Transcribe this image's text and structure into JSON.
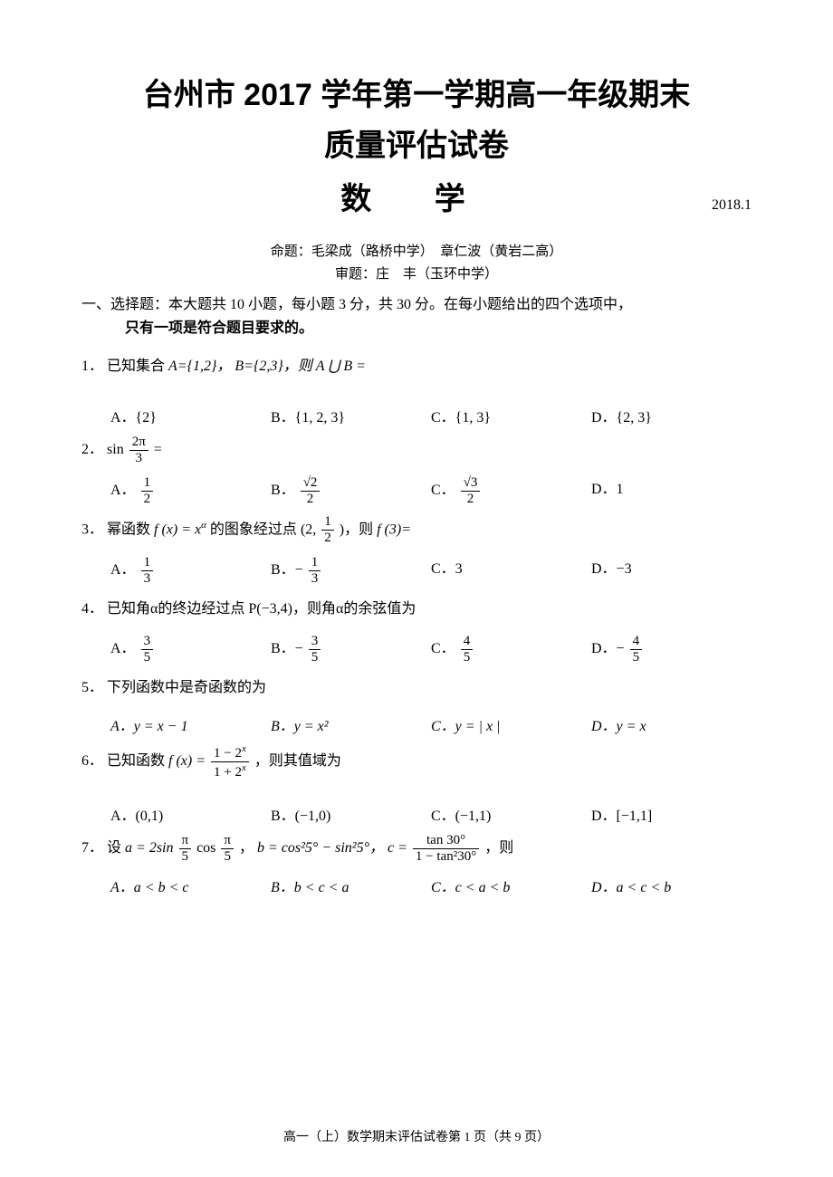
{
  "title_line1": "台州市 2017 学年第一学期高一年级期末",
  "title_line2": "质量评估试卷",
  "subject": "数 学",
  "date": "2018.1",
  "credits1": "命题：毛梁成（路桥中学）　章仁波（黄岩二高）",
  "credits2": "审题：庄　丰（玉环中学）",
  "section1_prefix": "一、选择题：",
  "section1_body": "本大题共 10 小题，每小题 3 分，共 30 分。在每小题给出的四个选项中，",
  "section1_body2": "只有一项是符合题目要求的。",
  "q1": {
    "num": "1．",
    "text_pre": "已知集合 ",
    "A_eq": "A={1,2}，",
    "B_eq": "B={2,3}，则 ",
    "union": "A ⋃ B =",
    "choices": {
      "A": "A．{2}",
      "B": "B．{1, 2, 3}",
      "C": "C．{1, 3}",
      "D": "D．{2, 3}"
    }
  },
  "q2": {
    "num": "2．",
    "sin": "sin",
    "num_frac": "2π",
    "den_frac": "3",
    "eq": " =",
    "choices": {
      "A_label": "A．",
      "A_num": "1",
      "A_den": "2",
      "B_label": "B．",
      "B_num": "√2",
      "B_den": "2",
      "C_label": "C．",
      "C_num": "√3",
      "C_den": "2",
      "D": "D．1"
    }
  },
  "q3": {
    "num": "3．",
    "text": "幂函数 ",
    "fx": "f (x) = x",
    "alpha": "α",
    "text2": " 的图象经过点 ",
    "point_open": "(2,",
    "pt_num": "1",
    "pt_den": "2",
    "point_close": ")，则 ",
    "f3": "f (3)=",
    "choices": {
      "A_label": "A．",
      "A_num": "1",
      "A_den": "3",
      "B_label": "B．−",
      "B_num": "1",
      "B_den": "3",
      "C": "C．3",
      "D": "D．−3"
    }
  },
  "q4": {
    "num": "4．",
    "text": "已知角α的终边经过点 P(−3,4)，则角α的余弦值为",
    "choices": {
      "A_label": "A．",
      "A_num": "3",
      "A_den": "5",
      "B_label": "B．−",
      "B_num": "3",
      "B_den": "5",
      "C_label": "C．",
      "C_num": "4",
      "C_den": "5",
      "D_label": "D．−",
      "D_num": "4",
      "D_den": "5"
    }
  },
  "q5": {
    "num": "5．",
    "text": "下列函数中是奇函数的为",
    "choices": {
      "A": "A．y = x − 1",
      "B": "B．y = x²",
      "C": "C．y = | x |",
      "D": "D．y = x"
    }
  },
  "q6": {
    "num": "6．",
    "text": "已知函数 ",
    "fx": "f (x) = ",
    "num_expr": "1 − 2",
    "den_expr": "1 + 2",
    "exp": "x",
    "text2": "，则其值域为",
    "choices": {
      "A": "A．(0,1)",
      "B": "B．(−1,0)",
      "C": "C．(−1,1)",
      "D": "D．[−1,1]"
    }
  },
  "q7": {
    "num": "7．",
    "text_pre": "设 ",
    "a_eq": "a = 2sin",
    "a_num": "π",
    "a_den": "5",
    "cos": "cos",
    "comma": "，",
    "b_eq": "b = cos²5° − sin²5°，",
    "c_eq": "c = ",
    "c_num": "tan 30°",
    "c_den": "1 − tan²30°",
    "text_post": "，则",
    "choices": {
      "A": "A．a < b < c",
      "B": "B．b < c < a",
      "C": "C．c < a < b",
      "D": "D．a < c < b"
    }
  },
  "footer": "高一（上）数学期末评估试卷第 1 页（共 9 页）",
  "colors": {
    "background": "#ffffff",
    "text": "#000000"
  },
  "typography": {
    "title_fontsize": 34,
    "body_fontsize": 16,
    "footer_fontsize": 14,
    "credits_fontsize": 15
  }
}
